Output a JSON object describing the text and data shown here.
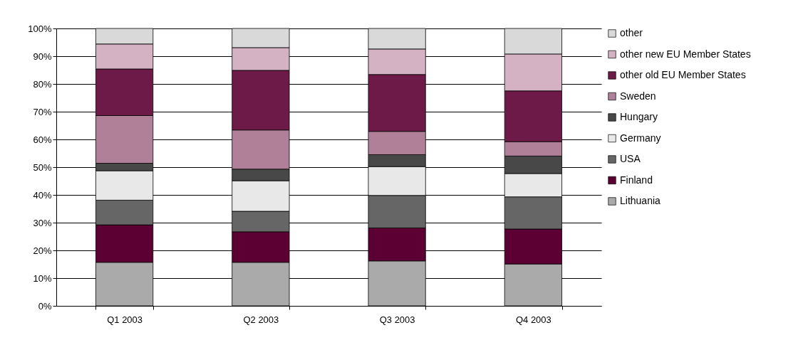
{
  "chart_data": {
    "type": "bar",
    "stacked": true,
    "categories": [
      "Q1 2003",
      "Q2 2003",
      "Q3 2003",
      "Q4 2003"
    ],
    "series": [
      {
        "name": "Lithuania",
        "color": "#aaaaaa",
        "values": [
          15.7,
          15.7,
          16.2,
          15.1
        ]
      },
      {
        "name": "Finland",
        "color": "#5c0033",
        "values": [
          13.5,
          11.0,
          11.9,
          12.6
        ]
      },
      {
        "name": "USA",
        "color": "#666666",
        "values": [
          8.9,
          7.4,
          11.7,
          11.6
        ]
      },
      {
        "name": "Germany",
        "color": "#e8e8e8",
        "values": [
          10.6,
          11.0,
          10.4,
          8.4
        ]
      },
      {
        "name": "Hungary",
        "color": "#484848",
        "values": [
          2.7,
          4.2,
          4.3,
          6.3
        ]
      },
      {
        "name": "Sweden",
        "color": "#b08098",
        "values": [
          17.2,
          14.1,
          8.4,
          5.2
        ]
      },
      {
        "name": "other old EU Member States",
        "color": "#6e1a48",
        "values": [
          16.8,
          21.5,
          20.5,
          18.3
        ]
      },
      {
        "name": "other new EU Member States",
        "color": "#d4b2c4",
        "values": [
          9.0,
          8.2,
          9.2,
          13.3
        ]
      },
      {
        "name": "other",
        "color": "#d9d9d9",
        "values": [
          5.6,
          6.9,
          7.4,
          9.2
        ]
      }
    ],
    "ylim": [
      0,
      100
    ],
    "yticks": [
      {
        "value": 0,
        "label": "0%"
      },
      {
        "value": 10,
        "label": "10%"
      },
      {
        "value": 20,
        "label": "20%"
      },
      {
        "value": 30,
        "label": "30%"
      },
      {
        "value": 40,
        "label": "40%"
      },
      {
        "value": 50,
        "label": "50%"
      },
      {
        "value": 60,
        "label": "60%"
      },
      {
        "value": 70,
        "label": "70%"
      },
      {
        "value": 80,
        "label": "80%"
      },
      {
        "value": 90,
        "label": "90%"
      },
      {
        "value": 100,
        "label": "100%"
      }
    ],
    "grid": "y",
    "legend": "right"
  }
}
